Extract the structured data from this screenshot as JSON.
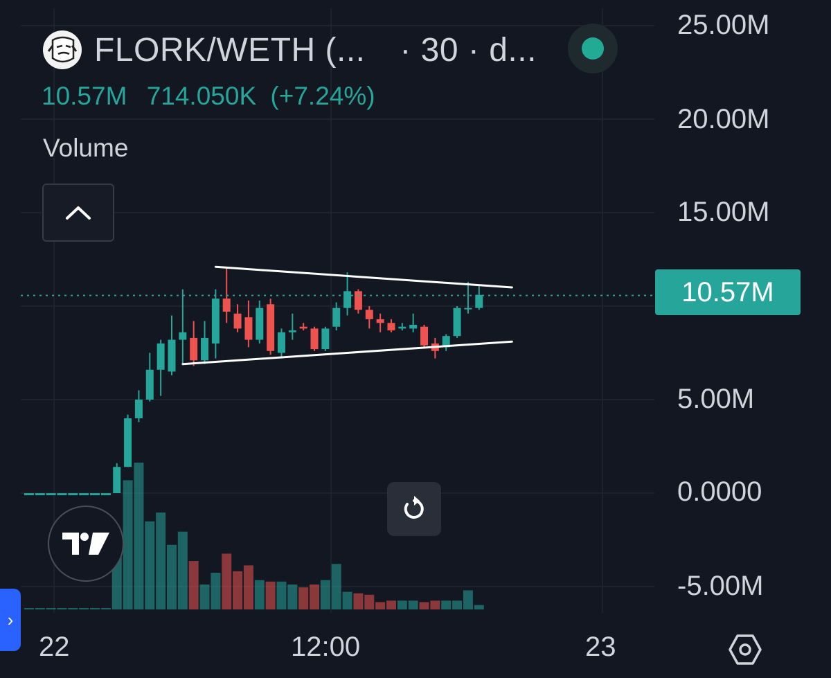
{
  "header": {
    "symbol": "FLORK/WETH (...",
    "interval": "· 30 · d...",
    "status_color": "#22ab94"
  },
  "legend": {
    "value": "10.57M",
    "change": "714.050K",
    "change_pct": "(+7.24%)"
  },
  "study": {
    "label": "Volume"
  },
  "icons": {
    "collapse": "chevron-up-icon",
    "reset": "reset-icon",
    "logo": "tradingview-logo",
    "settings": "settings-icon",
    "side": "chevron-right-icon"
  },
  "price_axis": {
    "labels": [
      "25.00M",
      "20.00M",
      "15.00M",
      "5.00M",
      "0.0000",
      "-5.00M"
    ],
    "current_price": "10.57M"
  },
  "time_axis": {
    "labels": [
      "22",
      "12:00",
      "23"
    ]
  },
  "colors": {
    "up": "#26a69a",
    "down": "#ef5350",
    "background": "#131722",
    "grid": "#1e222d",
    "trendline": "#ffffff"
  },
  "chart_data": {
    "type": "candlestick",
    "ylim": [
      -5000000,
      25000000
    ],
    "last_price": 10570000,
    "candles": [
      {
        "o": -60000,
        "h": -60000,
        "l": -60000,
        "c": -60000
      },
      {
        "o": -60000,
        "h": -60000,
        "l": -60000,
        "c": -60000
      },
      {
        "o": -60000,
        "h": -60000,
        "l": -60000,
        "c": -60000
      },
      {
        "o": -60000,
        "h": -60000,
        "l": -60000,
        "c": -60000
      },
      {
        "o": -60000,
        "h": -60000,
        "l": -60000,
        "c": -60000
      },
      {
        "o": -60000,
        "h": -60000,
        "l": -60000,
        "c": -60000
      },
      {
        "o": -60000,
        "h": -60000,
        "l": -60000,
        "c": -60000
      },
      {
        "o": -60000,
        "h": -60000,
        "l": -60000,
        "c": -60000
      },
      {
        "o": 0,
        "h": 1600000,
        "l": 0,
        "c": 1400000
      },
      {
        "o": 1400000,
        "h": 4200000,
        "l": 1400000,
        "c": 4000000
      },
      {
        "o": 4000000,
        "h": 5500000,
        "l": 3800000,
        "c": 5000000
      },
      {
        "o": 5000000,
        "h": 7500000,
        "l": 4900000,
        "c": 6600000
      },
      {
        "o": 6600000,
        "h": 8200000,
        "l": 5200000,
        "c": 8000000
      },
      {
        "o": 6500000,
        "h": 9500000,
        "l": 6300000,
        "c": 8200000
      },
      {
        "o": 8200000,
        "h": 10900000,
        "l": 6900000,
        "c": 8600000
      },
      {
        "o": 8300000,
        "h": 9200000,
        "l": 6800000,
        "c": 7100000
      },
      {
        "o": 7100000,
        "h": 9200000,
        "l": 6900000,
        "c": 8300000
      },
      {
        "o": 8000000,
        "h": 10900000,
        "l": 7200000,
        "c": 10400000
      },
      {
        "o": 10400000,
        "h": 12100000,
        "l": 9100000,
        "c": 9700000
      },
      {
        "o": 9600000,
        "h": 10100000,
        "l": 8600000,
        "c": 8800000
      },
      {
        "o": 9400000,
        "h": 10300000,
        "l": 7800000,
        "c": 8200000
      },
      {
        "o": 8200000,
        "h": 10300000,
        "l": 8000000,
        "c": 9900000
      },
      {
        "o": 10100000,
        "h": 10400000,
        "l": 7400000,
        "c": 7600000
      },
      {
        "o": 7500000,
        "h": 8800000,
        "l": 7200000,
        "c": 8600000
      },
      {
        "o": 8600000,
        "h": 9600000,
        "l": 8200000,
        "c": 8700000
      },
      {
        "o": 8900000,
        "h": 9100000,
        "l": 8700000,
        "c": 8800000
      },
      {
        "o": 8800000,
        "h": 8900000,
        "l": 7600000,
        "c": 7700000
      },
      {
        "o": 7700000,
        "h": 8900000,
        "l": 7600000,
        "c": 8800000
      },
      {
        "o": 8900000,
        "h": 10200000,
        "l": 8700000,
        "c": 9900000
      },
      {
        "o": 9900000,
        "h": 11800000,
        "l": 9500000,
        "c": 10800000
      },
      {
        "o": 10800000,
        "h": 10900000,
        "l": 9600000,
        "c": 9800000
      },
      {
        "o": 9800000,
        "h": 10000000,
        "l": 8800000,
        "c": 9300000
      },
      {
        "o": 9300000,
        "h": 9600000,
        "l": 8600000,
        "c": 9100000
      },
      {
        "o": 9100000,
        "h": 9300000,
        "l": 8600000,
        "c": 8700000
      },
      {
        "o": 8800000,
        "h": 9100000,
        "l": 8700000,
        "c": 8900000
      },
      {
        "o": 8800000,
        "h": 9600000,
        "l": 8600000,
        "c": 9000000
      },
      {
        "o": 8900000,
        "h": 9000000,
        "l": 7800000,
        "c": 7900000
      },
      {
        "o": 8000000,
        "h": 8300000,
        "l": 7200000,
        "c": 7600000
      },
      {
        "o": 7800000,
        "h": 8500000,
        "l": 7600000,
        "c": 8400000
      },
      {
        "o": 8400000,
        "h": 10000000,
        "l": 8300000,
        "c": 9900000
      },
      {
        "o": 9900000,
        "h": 11300000,
        "l": 9600000,
        "c": 9900000
      },
      {
        "o": 9900000,
        "h": 11100000,
        "l": 9800000,
        "c": 10600000
      }
    ],
    "volume": [
      0.05,
      0.05,
      0.05,
      0.05,
      0.05,
      0.05,
      0.05,
      0.05,
      4.0,
      8.8,
      10.0,
      6.0,
      6.6,
      4.4,
      5.3,
      3.3,
      1.7,
      2.5,
      3.8,
      2.6,
      3.0,
      2.0,
      1.9,
      1.9,
      1.7,
      1.5,
      1.7,
      2.0,
      3.1,
      1.2,
      1.1,
      1.0,
      0.5,
      0.6,
      0.6,
      0.6,
      0.5,
      0.6,
      0.6,
      0.6,
      1.3,
      0.3
    ],
    "trendlines": [
      {
        "from": {
          "index": 17,
          "value": 12100000
        },
        "to": {
          "index": 44,
          "value": 11000000
        }
      },
      {
        "from": {
          "index": 14,
          "value": 6900000
        },
        "to": {
          "index": 44,
          "value": 8100000
        }
      }
    ]
  }
}
